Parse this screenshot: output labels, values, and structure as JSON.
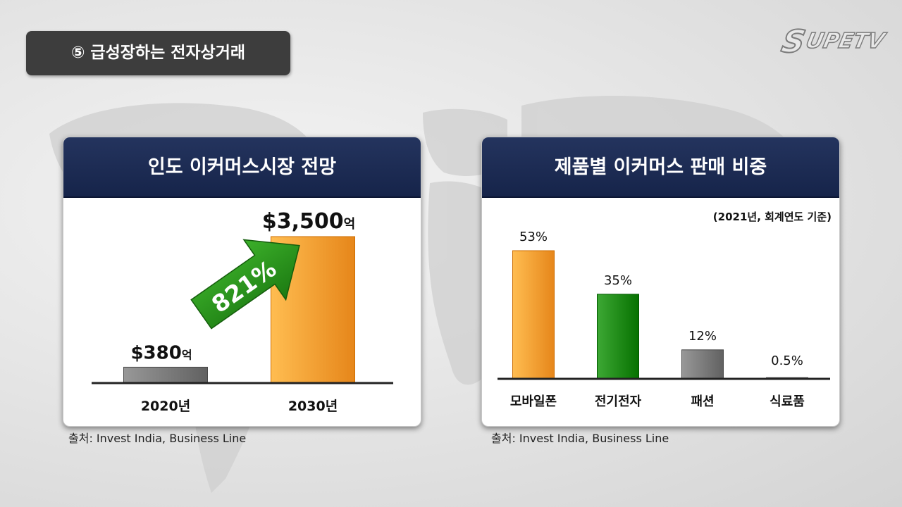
{
  "header": {
    "title": "⑤ 급성장하는 전자상거래"
  },
  "logo": {
    "text": "SUPETV"
  },
  "colors": {
    "navy": "#1d2b52",
    "orange": "#ff9f33",
    "green": "#1f8a16",
    "gray": "#7a7a7a",
    "arrow_green": "#2e9a1e"
  },
  "chart_data": [
    {
      "type": "bar",
      "title": "인도 이커머스시장 전망",
      "categories": [
        "2020년",
        "2030년"
      ],
      "values": [
        380,
        3500
      ],
      "value_labels": [
        {
          "main": "$380",
          "unit": "억"
        },
        {
          "main": "$3,500",
          "unit": "억"
        }
      ],
      "colors": [
        "#7a7a7a",
        "#ff9f33"
      ],
      "annotation": "821%",
      "source": "출처: Invest India, Business Line"
    },
    {
      "type": "bar",
      "title": "제품별 이커머스 판매 비중",
      "subtitle": "(2021년, 회계연도 기준)",
      "categories": [
        "모바일폰",
        "전기전자",
        "패션",
        "식료품"
      ],
      "values": [
        53,
        35,
        12,
        0.5
      ],
      "value_labels": [
        "53%",
        "35%",
        "12%",
        "0.5%"
      ],
      "colors": [
        "#ff9f33",
        "#1f8a16",
        "#7a7a7a",
        "#7a7a7a"
      ],
      "source": "출처: Invest India, Business Line"
    }
  ]
}
